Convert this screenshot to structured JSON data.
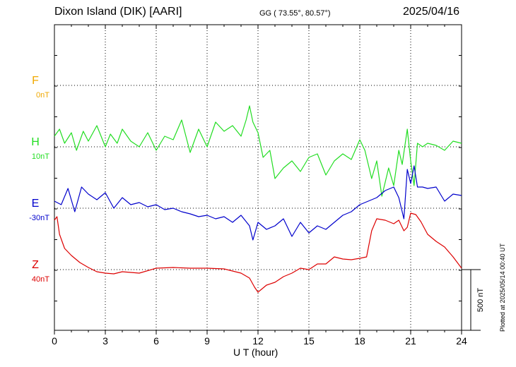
{
  "header": {
    "station": "Dixon Island (DIK)  [AARI]",
    "coords": "GG ( 73.55°,  80.57°)",
    "date": "2025/04/16"
  },
  "footer": {
    "plotted": "Plotted at 2025/05/14 00:40 UT"
  },
  "chart_data": {
    "type": "line",
    "xlabel": "U T (hour)",
    "xlim": [
      0,
      24
    ],
    "xticks": [
      "0",
      "3",
      "6",
      "9",
      "12",
      "15",
      "18",
      "21",
      "24"
    ],
    "scale_bar": "500 nT",
    "colors": {
      "F": "#f0a800",
      "H": "#22dd22",
      "E": "#0000cc",
      "Z": "#dd0000"
    },
    "series": [
      {
        "name": "F",
        "offset": "0nT",
        "points": []
      },
      {
        "name": "H",
        "offset": "10nT",
        "points": [
          [
            0.0,
            15
          ],
          [
            0.3,
            25
          ],
          [
            0.6,
            5
          ],
          [
            1.0,
            20
          ],
          [
            1.3,
            -5
          ],
          [
            1.7,
            22
          ],
          [
            2.0,
            8
          ],
          [
            2.5,
            30
          ],
          [
            3.0,
            0
          ],
          [
            3.3,
            18
          ],
          [
            3.7,
            5
          ],
          [
            4.0,
            25
          ],
          [
            4.5,
            8
          ],
          [
            5.0,
            0
          ],
          [
            5.5,
            20
          ],
          [
            6.0,
            -5
          ],
          [
            6.5,
            15
          ],
          [
            7.0,
            10
          ],
          [
            7.5,
            38
          ],
          [
            8.0,
            -8
          ],
          [
            8.5,
            25
          ],
          [
            9.0,
            0
          ],
          [
            9.5,
            35
          ],
          [
            10.0,
            22
          ],
          [
            10.5,
            30
          ],
          [
            11.0,
            15
          ],
          [
            11.3,
            38
          ],
          [
            11.5,
            58
          ],
          [
            11.7,
            35
          ],
          [
            12.0,
            20
          ],
          [
            12.3,
            -15
          ],
          [
            12.7,
            -5
          ],
          [
            13.0,
            -45
          ],
          [
            13.5,
            -30
          ],
          [
            14.0,
            -20
          ],
          [
            14.5,
            -35
          ],
          [
            15.0,
            -15
          ],
          [
            15.5,
            -10
          ],
          [
            16.0,
            -40
          ],
          [
            16.5,
            -20
          ],
          [
            17.0,
            -10
          ],
          [
            17.5,
            -18
          ],
          [
            18.0,
            10
          ],
          [
            18.3,
            -5
          ],
          [
            18.7,
            -45
          ],
          [
            19.0,
            -20
          ],
          [
            19.3,
            -70
          ],
          [
            19.7,
            -30
          ],
          [
            20.0,
            -55
          ],
          [
            20.3,
            -5
          ],
          [
            20.5,
            -25
          ],
          [
            20.8,
            25
          ],
          [
            21.0,
            -20
          ],
          [
            21.2,
            -55
          ],
          [
            21.4,
            5
          ],
          [
            21.7,
            0
          ],
          [
            22.0,
            5
          ],
          [
            22.5,
            2
          ],
          [
            23.0,
            -5
          ],
          [
            23.5,
            8
          ],
          [
            24.0,
            5
          ]
        ]
      },
      {
        "name": "E",
        "offset": "-30nT",
        "points": [
          [
            0.0,
            10
          ],
          [
            0.4,
            5
          ],
          [
            0.8,
            28
          ],
          [
            1.2,
            -5
          ],
          [
            1.6,
            30
          ],
          [
            2.0,
            20
          ],
          [
            2.5,
            12
          ],
          [
            3.0,
            22
          ],
          [
            3.5,
            0
          ],
          [
            4.0,
            15
          ],
          [
            4.5,
            5
          ],
          [
            5.0,
            8
          ],
          [
            5.5,
            2
          ],
          [
            6.0,
            5
          ],
          [
            6.5,
            -2
          ],
          [
            7.0,
            0
          ],
          [
            7.5,
            -5
          ],
          [
            8.0,
            -8
          ],
          [
            8.5,
            -12
          ],
          [
            9.0,
            -10
          ],
          [
            9.5,
            -15
          ],
          [
            10.0,
            -12
          ],
          [
            10.5,
            -20
          ],
          [
            11.0,
            -10
          ],
          [
            11.5,
            -25
          ],
          [
            11.7,
            -45
          ],
          [
            12.0,
            -20
          ],
          [
            12.5,
            -30
          ],
          [
            13.0,
            -25
          ],
          [
            13.5,
            -15
          ],
          [
            14.0,
            -40
          ],
          [
            14.5,
            -20
          ],
          [
            15.0,
            -35
          ],
          [
            15.5,
            -25
          ],
          [
            16.0,
            -30
          ],
          [
            16.5,
            -20
          ],
          [
            17.0,
            -10
          ],
          [
            17.5,
            -5
          ],
          [
            18.0,
            5
          ],
          [
            18.5,
            10
          ],
          [
            19.0,
            15
          ],
          [
            19.5,
            25
          ],
          [
            20.0,
            30
          ],
          [
            20.3,
            15
          ],
          [
            20.6,
            -15
          ],
          [
            20.8,
            55
          ],
          [
            21.0,
            35
          ],
          [
            21.2,
            60
          ],
          [
            21.4,
            30
          ],
          [
            21.7,
            30
          ],
          [
            22.0,
            28
          ],
          [
            22.5,
            30
          ],
          [
            23.0,
            10
          ],
          [
            23.5,
            20
          ],
          [
            24.0,
            18
          ]
        ]
      },
      {
        "name": "Z",
        "offset": "40nT",
        "points": [
          [
            0.0,
            70
          ],
          [
            0.15,
            75
          ],
          [
            0.3,
            50
          ],
          [
            0.6,
            30
          ],
          [
            1.0,
            20
          ],
          [
            1.5,
            10
          ],
          [
            2.0,
            3
          ],
          [
            2.5,
            -3
          ],
          [
            3.0,
            -5
          ],
          [
            3.5,
            -6
          ],
          [
            4.0,
            -3
          ],
          [
            5.0,
            -5
          ],
          [
            6.0,
            2
          ],
          [
            7.0,
            3
          ],
          [
            8.0,
            2
          ],
          [
            9.0,
            2
          ],
          [
            10.0,
            1
          ],
          [
            11.0,
            -5
          ],
          [
            11.5,
            -12
          ],
          [
            11.8,
            -25
          ],
          [
            12.0,
            -32
          ],
          [
            12.5,
            -22
          ],
          [
            13.0,
            -18
          ],
          [
            13.5,
            -10
          ],
          [
            14.0,
            -5
          ],
          [
            14.5,
            2
          ],
          [
            15.0,
            0
          ],
          [
            15.5,
            8
          ],
          [
            16.0,
            8
          ],
          [
            16.5,
            18
          ],
          [
            17.0,
            15
          ],
          [
            17.5,
            14
          ],
          [
            18.0,
            16
          ],
          [
            18.4,
            18
          ],
          [
            18.7,
            55
          ],
          [
            19.0,
            72
          ],
          [
            19.5,
            70
          ],
          [
            20.0,
            65
          ],
          [
            20.3,
            70
          ],
          [
            20.6,
            55
          ],
          [
            20.8,
            60
          ],
          [
            21.0,
            80
          ],
          [
            21.3,
            78
          ],
          [
            21.6,
            68
          ],
          [
            22.0,
            50
          ],
          [
            22.5,
            40
          ],
          [
            23.0,
            32
          ],
          [
            23.5,
            18
          ],
          [
            24.0,
            2
          ]
        ]
      }
    ]
  }
}
